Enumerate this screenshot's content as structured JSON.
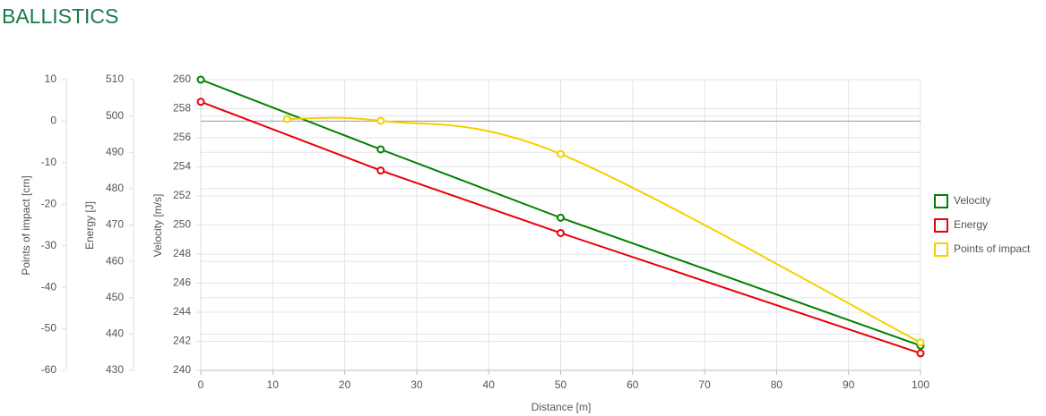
{
  "chart_data": {
    "type": "line",
    "title": "BALLISTICS",
    "xlabel": "Distance [m]",
    "xlim": [
      0,
      100
    ],
    "xticks": [
      0,
      10,
      20,
      30,
      40,
      50,
      60,
      70,
      80,
      90,
      100
    ],
    "ylabel": "Velocity [m/s]",
    "ylim": [
      240,
      260
    ],
    "yticks": [
      240,
      242,
      244,
      246,
      248,
      250,
      252,
      254,
      256,
      258,
      260
    ],
    "y2label": "Energy [J]",
    "y2lim": [
      430,
      510
    ],
    "y2ticks": [
      430,
      440,
      450,
      460,
      470,
      480,
      490,
      500,
      510
    ],
    "y3label": "Points of impact [cm]",
    "y3lim": [
      -60,
      10
    ],
    "y3ticks": [
      -60,
      -50,
      -40,
      -30,
      -20,
      -10,
      0,
      10
    ],
    "grid": true,
    "legend": "right",
    "series": [
      {
        "name": "Velocity",
        "color": "#008000",
        "axis": "y",
        "smooth": false,
        "x": [
          0,
          25,
          50,
          100
        ],
        "values": [
          260,
          255.2,
          250.5,
          241.7
        ]
      },
      {
        "name": "Energy",
        "color": "#e8000b",
        "axis": "y2",
        "smooth": false,
        "x": [
          0,
          25,
          50,
          100
        ],
        "values": [
          503.9,
          485.0,
          467.8,
          434.7
        ]
      },
      {
        "name": "Points of impact",
        "color": "#f5d000",
        "axis": "y3",
        "smooth": true,
        "x": [
          12,
          25,
          50,
          100
        ],
        "values": [
          0.5,
          0.1,
          -7.9,
          -53.3
        ]
      }
    ]
  }
}
